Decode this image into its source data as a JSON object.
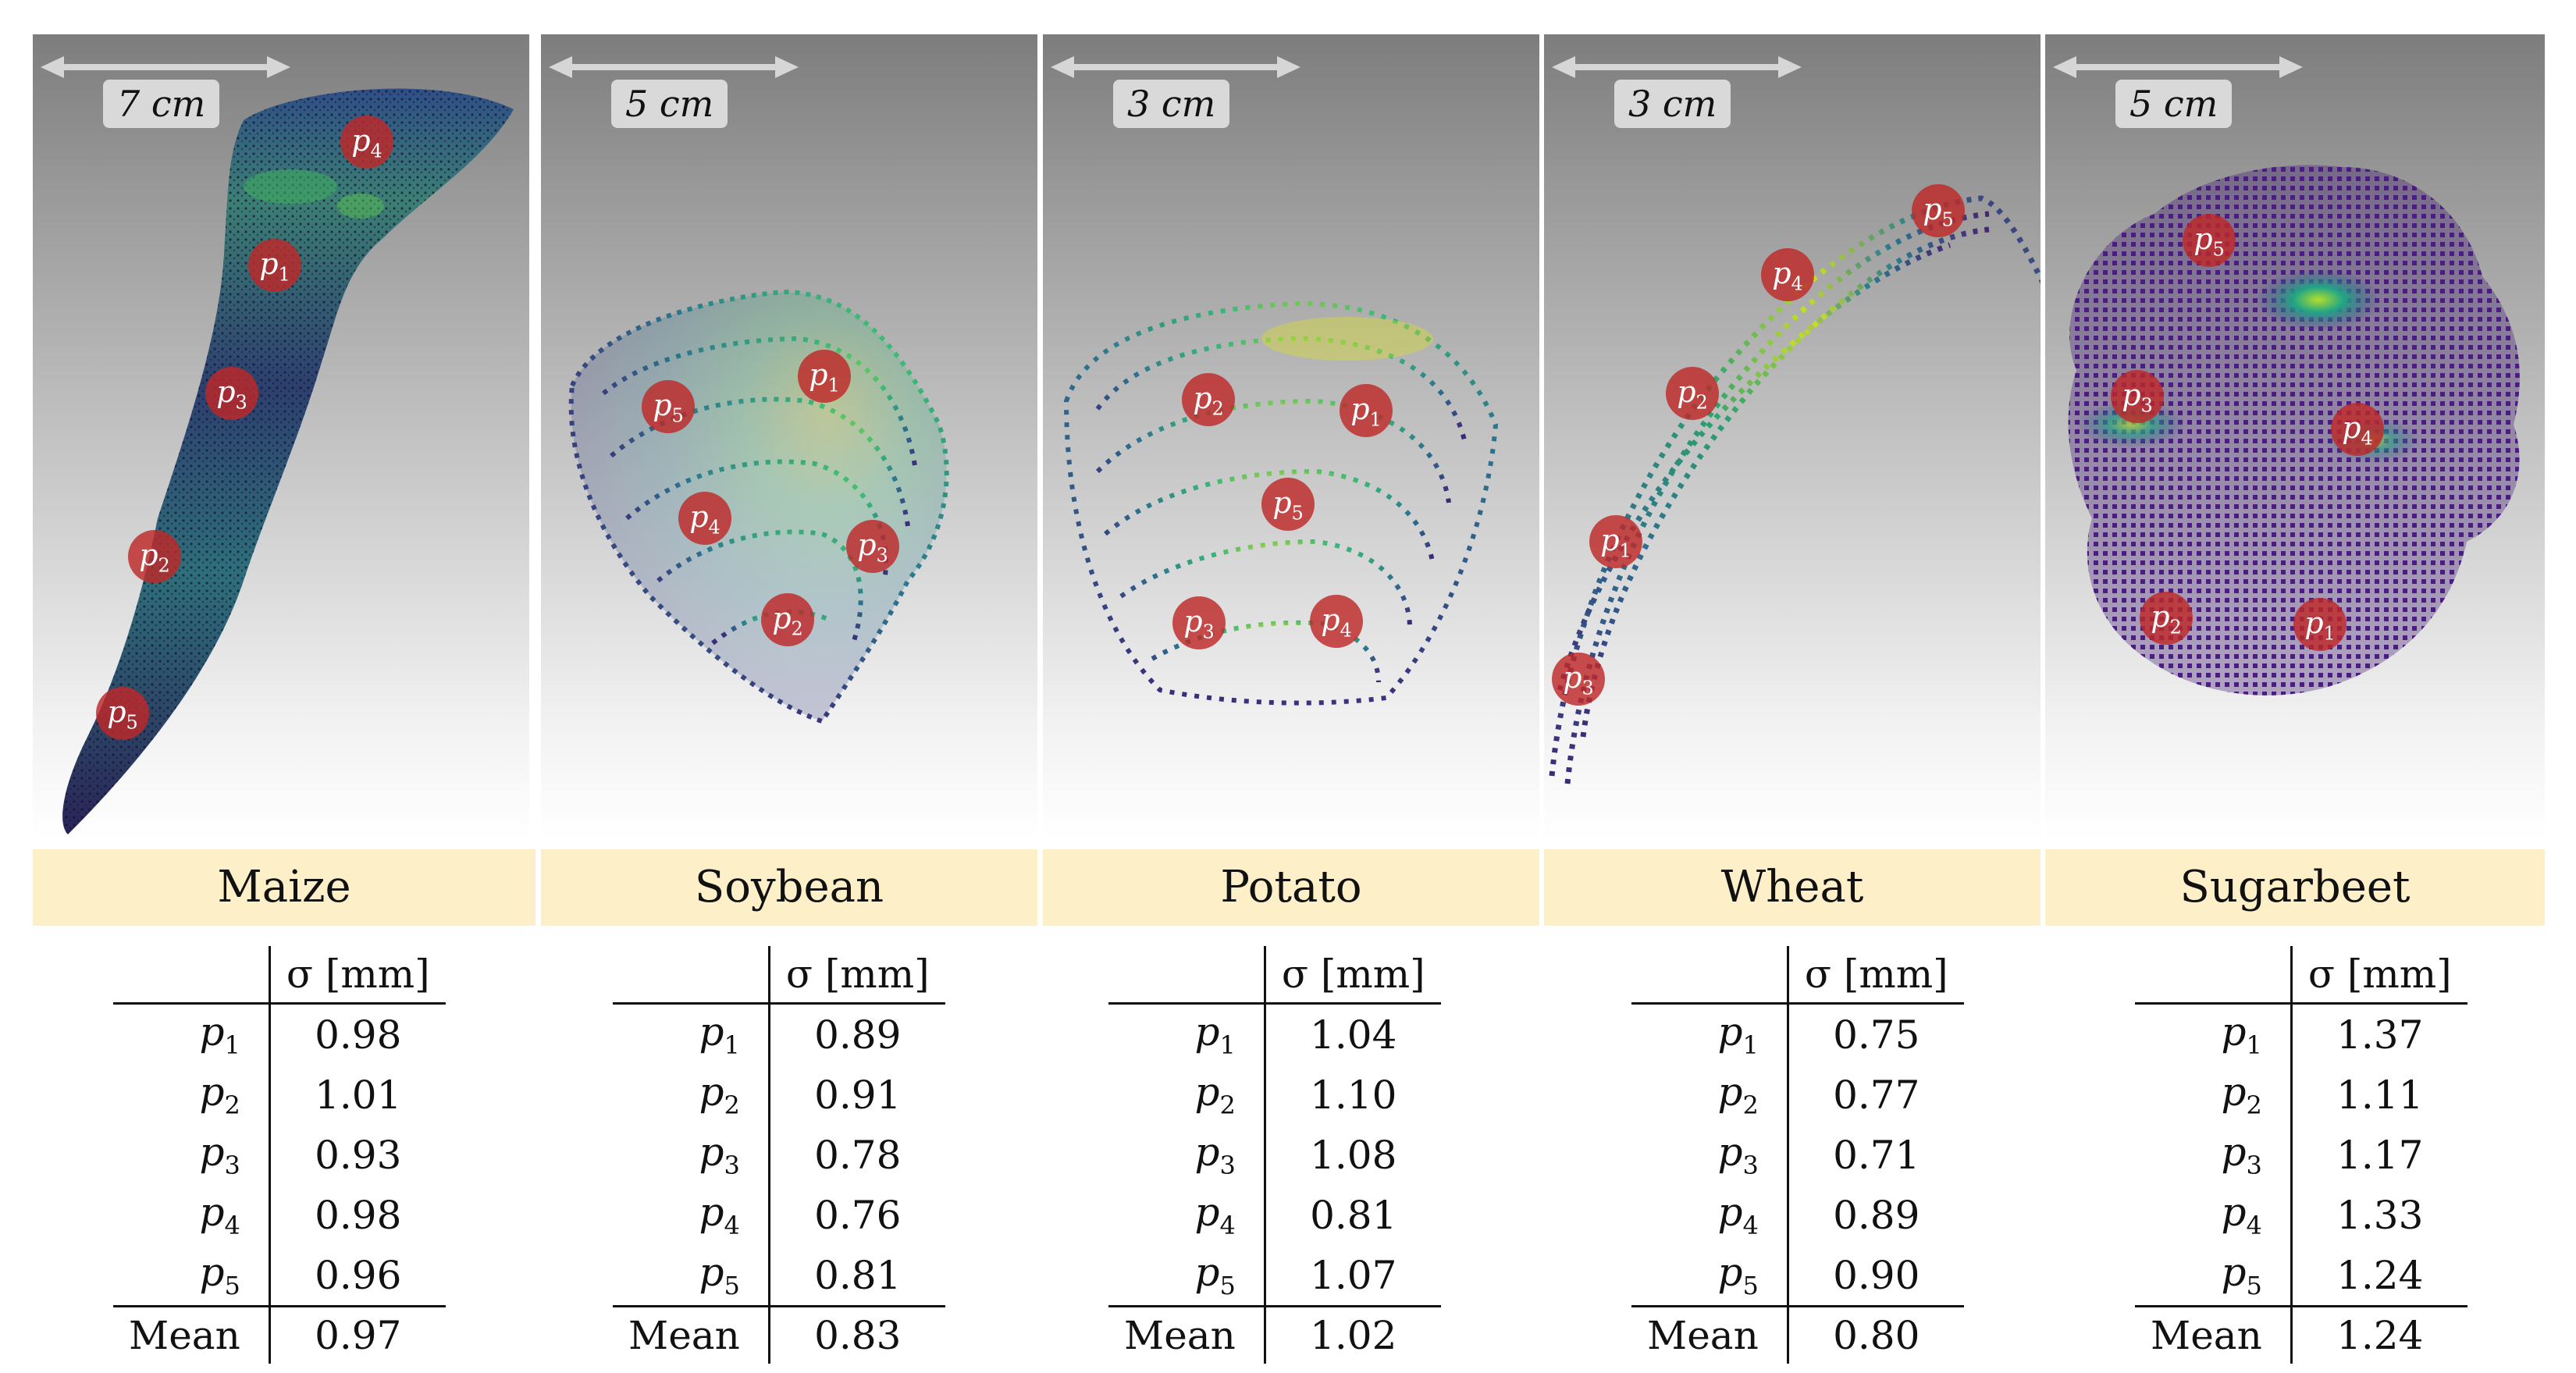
{
  "header_col": "σ [mm]",
  "mean_label": "Mean",
  "point_labels": [
    "p1",
    "p2",
    "p3",
    "p4",
    "p5"
  ],
  "crops": [
    {
      "name": "Maize",
      "scale": "7 cm",
      "sigma": [
        "0.98",
        "1.01",
        "0.93",
        "0.98",
        "0.96"
      ],
      "mean": "0.97"
    },
    {
      "name": "Soybean",
      "scale": "5 cm",
      "sigma": [
        "0.89",
        "0.91",
        "0.78",
        "0.76",
        "0.81"
      ],
      "mean": "0.83"
    },
    {
      "name": "Potato",
      "scale": "3 cm",
      "sigma": [
        "1.04",
        "1.10",
        "1.08",
        "0.81",
        "1.07"
      ],
      "mean": "1.02"
    },
    {
      "name": "Wheat",
      "scale": "3 cm",
      "sigma": [
        "0.75",
        "0.77",
        "0.71",
        "0.89",
        "0.90"
      ],
      "mean": "0.80"
    },
    {
      "name": "Sugarbeet",
      "scale": "5 cm",
      "sigma": [
        "1.37",
        "1.11",
        "1.17",
        "1.33",
        "1.24"
      ],
      "mean": "1.24"
    }
  ],
  "colors": {
    "marker": "#be2828",
    "label_bg": "#fdf0c9",
    "panel_top": "#7d7d7d"
  }
}
